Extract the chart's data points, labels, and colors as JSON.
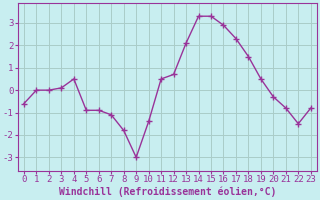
{
  "x": [
    0,
    1,
    2,
    3,
    4,
    5,
    6,
    7,
    8,
    9,
    10,
    11,
    12,
    13,
    14,
    15,
    16,
    17,
    18,
    19,
    20,
    21,
    22,
    23
  ],
  "y": [
    -0.6,
    0.0,
    0.0,
    0.1,
    0.5,
    -0.9,
    -0.9,
    -1.1,
    -1.8,
    -3.0,
    -1.4,
    0.5,
    0.7,
    2.1,
    3.3,
    3.3,
    2.9,
    2.3,
    1.5,
    0.5,
    -0.3,
    -0.8,
    -1.5,
    -0.8
  ],
  "line_color": "#993399",
  "marker": "+",
  "marker_size": 4,
  "marker_linewidth": 1.0,
  "line_width": 1.0,
  "bg_color": "#c8eef0",
  "grid_color": "#aaccc8",
  "spine_color": "#993399",
  "xlabel": "Windchill (Refroidissement éolien,°C)",
  "ylabel_ticks": [
    -3,
    -2,
    -1,
    0,
    1,
    2,
    3
  ],
  "xtick_labels": [
    "0",
    "1",
    "2",
    "3",
    "4",
    "5",
    "6",
    "7",
    "8",
    "9",
    "10",
    "11",
    "12",
    "13",
    "14",
    "15",
    "16",
    "17",
    "18",
    "19",
    "20",
    "21",
    "22",
    "23"
  ],
  "xlim": [
    -0.5,
    23.5
  ],
  "ylim": [
    -3.6,
    3.9
  ],
  "font_color": "#993399",
  "tick_font_size": 6.5,
  "xlabel_fontsize": 7.0,
  "xlabel_fontweight": "bold"
}
